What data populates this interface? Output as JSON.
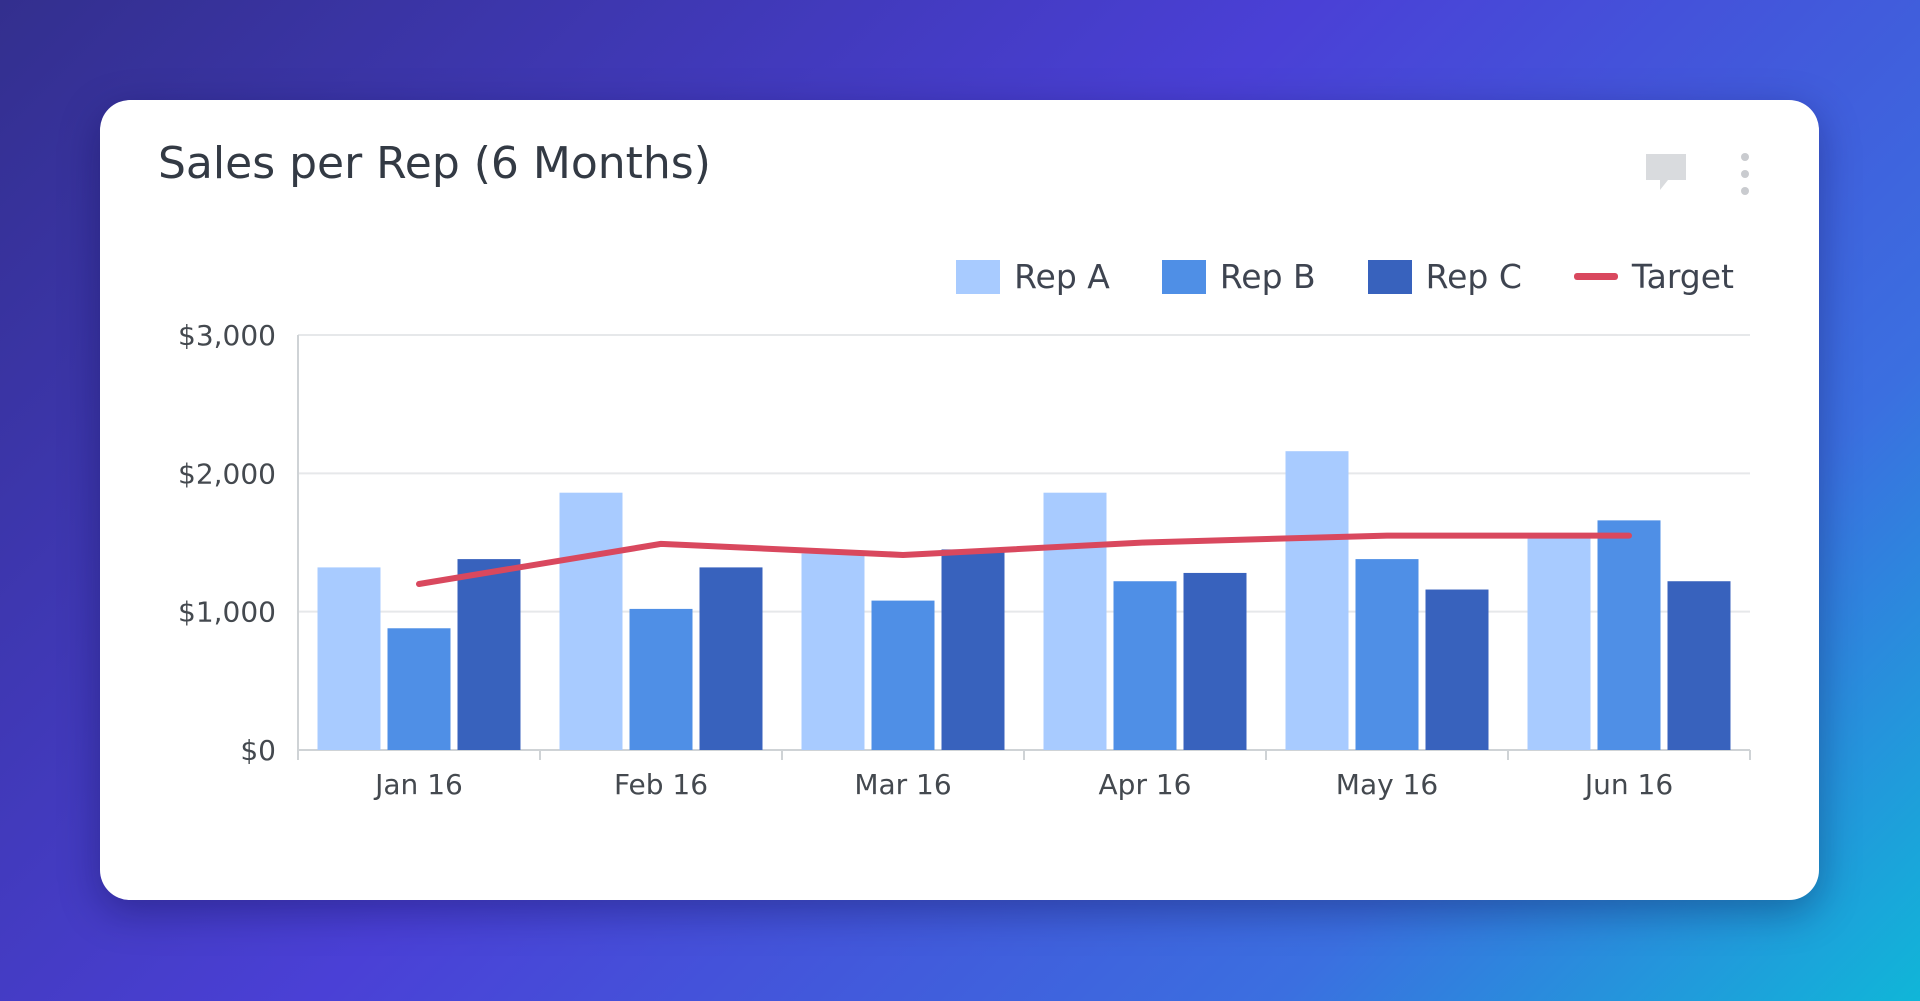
{
  "card": {
    "title": "Sales per Rep (6 Months)",
    "icons": [
      "comment-icon",
      "more-vertical-icon"
    ]
  },
  "legend": {
    "items": [
      {
        "label": "Rep A",
        "type": "bar",
        "color": "#a8cbff"
      },
      {
        "label": "Rep B",
        "type": "bar",
        "color": "#4f8fe6"
      },
      {
        "label": "Rep C",
        "type": "bar",
        "color": "#3862bd"
      },
      {
        "label": "Target",
        "type": "line",
        "color": "#d9485e"
      }
    ]
  },
  "chart_data": {
    "type": "bar",
    "title": "Sales per Rep (6 Months)",
    "categories": [
      "Jan 16",
      "Feb 16",
      "Mar 16",
      "Apr 16",
      "May 16",
      "Jun 16"
    ],
    "series": [
      {
        "name": "Rep A",
        "type": "bar",
        "color": "#a8cbff",
        "values": [
          1320,
          1860,
          1420,
          1860,
          2160,
          1550
        ]
      },
      {
        "name": "Rep B",
        "type": "bar",
        "color": "#4f8fe6",
        "values": [
          880,
          1020,
          1080,
          1220,
          1380,
          1660
        ]
      },
      {
        "name": "Rep C",
        "type": "bar",
        "color": "#3862bd",
        "values": [
          1380,
          1320,
          1450,
          1280,
          1160,
          1220
        ]
      },
      {
        "name": "Target",
        "type": "line",
        "color": "#d9485e",
        "values": [
          1200,
          1490,
          1410,
          1500,
          1550,
          1550
        ]
      }
    ],
    "y_ticks": [
      "$0",
      "$1,000",
      "$2,000",
      "$3,000"
    ],
    "ylim": [
      0,
      3000
    ],
    "grid": true,
    "legend_position": "top-right"
  }
}
